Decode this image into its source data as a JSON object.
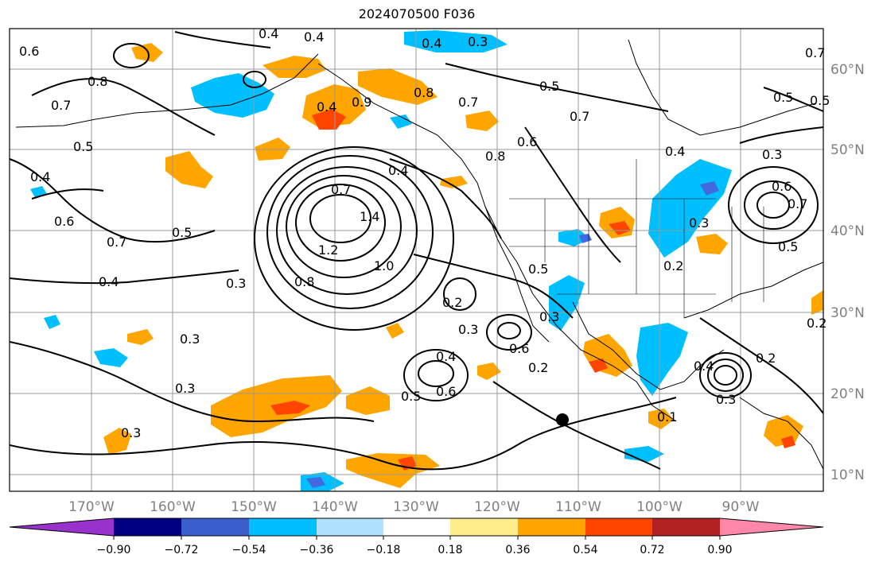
{
  "title": "2024070500 F036",
  "map": {
    "longitude_labels": [
      "170°W",
      "160°W",
      "150°W",
      "140°W",
      "130°W",
      "120°W",
      "110°W",
      "100°W",
      "90°W"
    ],
    "latitude_labels": [
      "60°N",
      "50°N",
      "40°N",
      "30°N",
      "20°N",
      "10°N"
    ],
    "contour_labels": [
      "0.4",
      "0.4",
      "0.6",
      "0.8",
      "0.7",
      "0.7",
      "0.4",
      "0.3",
      "0.5",
      "0.5",
      "0.9",
      "0.8",
      "0.7",
      "0.7",
      "0.6",
      "0.8",
      "0.5",
      "0.4",
      "0.7",
      "1.4",
      "1.2",
      "1.0",
      "0.5",
      "0.6",
      "0.7",
      "0.4",
      "0.3",
      "0.8",
      "0.5",
      "0.2",
      "0.3",
      "0.4",
      "0.6",
      "0.3",
      "0.4",
      "0.3",
      "0.5",
      "0.6",
      "0.3",
      "0.2",
      "0.3",
      "0.4",
      "0.2",
      "0.3",
      "0.5",
      "0.6",
      "0.5",
      "0.4",
      "0.7",
      "0.2",
      "0.3",
      "0.1",
      "0.3",
      "0.2",
      "0.4"
    ],
    "contour_color": "#000000",
    "shading_colors": {
      "orange": "#ffa500",
      "red_orange": "#ff4500",
      "deep_sky_blue": "#00bfff",
      "royal_blue": "#4169e1"
    },
    "marker": "black-dot"
  },
  "colorbar": {
    "tick_labels": [
      "−0.90",
      "−0.72",
      "−0.54",
      "−0.36",
      "−0.18",
      "0.18",
      "0.36",
      "0.54",
      "0.72",
      "0.90"
    ],
    "colors": [
      "#9932cc",
      "#000080",
      "#3a5fcd",
      "#00bfff",
      "#b0e2ff",
      "#ffffff",
      "#ffec8b",
      "#ffa500",
      "#ff4500",
      "#b22222",
      "#ff88aa"
    ]
  }
}
